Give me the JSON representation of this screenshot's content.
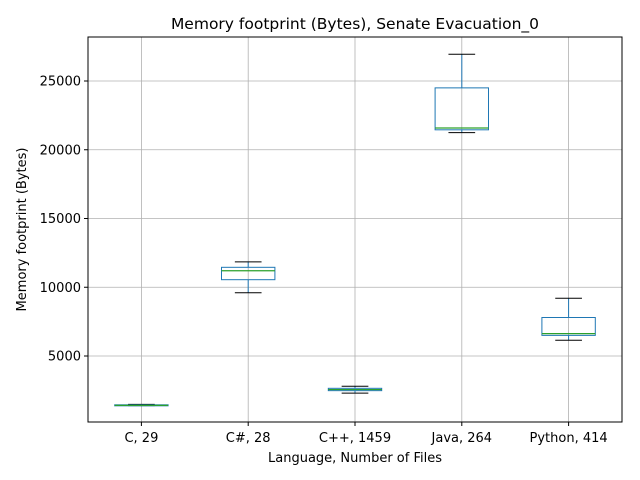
{
  "chart_data": {
    "type": "box",
    "title": "Memory footprint (Bytes), Senate Evacuation_0",
    "xlabel": "Language, Number of Files",
    "ylabel": "Memory footprint (Bytes)",
    "ylim": [
      200,
      28200
    ],
    "yticks": [
      5000,
      10000,
      15000,
      20000,
      25000
    ],
    "grid": true,
    "categories": [
      "C, 29",
      "C#, 28",
      "C++, 1459",
      "Java, 264",
      "Python, 414"
    ],
    "series": [
      {
        "category": "C, 29",
        "min": 1390,
        "q1": 1390,
        "median": 1410,
        "q3": 1450,
        "max": 1480
      },
      {
        "category": "C#, 28",
        "min": 9600,
        "q1": 10550,
        "median": 11200,
        "q3": 11450,
        "max": 11850
      },
      {
        "category": "C++, 1459",
        "min": 2300,
        "q1": 2480,
        "median": 2560,
        "q3": 2650,
        "max": 2800
      },
      {
        "category": "Java, 264",
        "min": 21250,
        "q1": 21450,
        "median": 21580,
        "q3": 24500,
        "max": 26950
      },
      {
        "category": "Python, 414",
        "min": 6150,
        "q1": 6500,
        "median": 6630,
        "q3": 7800,
        "max": 9200
      }
    ],
    "colors": {
      "box": "#1f77b4",
      "median": "#2ca02c",
      "whisker_cap": "#000000",
      "grid": "#b0b0b0"
    }
  }
}
